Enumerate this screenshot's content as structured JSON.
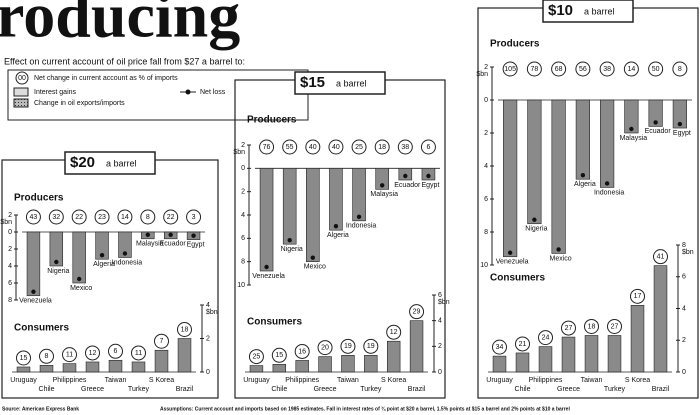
{
  "header": {
    "title": "roducing",
    "subtitle": "Effect on current account of oil price fall from $27 a barrel to:"
  },
  "legend": {
    "circle": "00",
    "circle_text": "Net change in current account as % of imports",
    "interest": "Interest gains",
    "oil": "Change in oil exports/imports",
    "loss": "Net loss"
  },
  "footer": {
    "source": "Source: American Express Bank",
    "note": "Assumptions: Current account and imports based on 1985 estimates. Fall in interest rates of ¾ point at $20 a barrel, 1.5% points at $15 a barrel and 2% points at $10 a barrel"
  },
  "chart_data": [
    {
      "type": "bar",
      "price": "$20",
      "price_unit": "a barrel",
      "title": "Producers",
      "ylabel": "$bn",
      "color": "#8a8a8a",
      "categories": [
        "Venezuela",
        "Nigeria",
        "Mexico",
        "Algeria",
        "Indonesia",
        "Malaysia",
        "Ecuador",
        "Egypt"
      ],
      "values": [
        -7.5,
        -4,
        -6,
        -3.2,
        -3,
        -0.8,
        -0.8,
        -0.9
      ],
      "pct_of_imports": [
        43,
        32,
        22,
        23,
        14,
        8,
        22,
        3
      ],
      "ylim": [
        -8,
        2
      ],
      "yticks": [
        2,
        0,
        {
          "value": -2,
          "label": "2"
        },
        {
          "value": -4,
          "label": "4"
        },
        {
          "value": -6,
          "label": "6"
        },
        {
          "value": -8,
          "label": "8"
        }
      ]
    },
    {
      "type": "bar",
      "title": "Consumers",
      "ylabel": "$bn",
      "color": "#8a8a8a",
      "categories": [
        "Uruguay",
        "Chile",
        "Philippines",
        "Greece",
        "Taiwan",
        "Turkey",
        "S Korea",
        "Brazil"
      ],
      "values": [
        0.3,
        0.4,
        0.5,
        0.6,
        0.7,
        0.6,
        1.3,
        2
      ],
      "pct_of_imports": [
        15,
        8,
        11,
        12,
        6,
        11,
        7,
        18
      ],
      "ylim": [
        0,
        4
      ],
      "yticks": [
        0,
        2,
        4
      ]
    },
    {
      "type": "bar",
      "price": "$15",
      "price_unit": "a barrel",
      "title": "Producers",
      "ylabel": "$bn",
      "color": "#8a8a8a",
      "categories": [
        "Venezuela",
        "Nigeria",
        "Mexico",
        "Algeria",
        "Indonesia",
        "Malaysia",
        "Ecuador",
        "Egypt"
      ],
      "values": [
        -8.8,
        -6.5,
        -8,
        -5.3,
        -4.5,
        -1.8,
        -1,
        -1
      ],
      "pct_of_imports": [
        76,
        55,
        40,
        40,
        25,
        18,
        38,
        6
      ],
      "ylim": [
        -10,
        2
      ],
      "yticks": [
        2,
        0,
        {
          "value": -2,
          "label": "2"
        },
        {
          "value": -4,
          "label": "4"
        },
        {
          "value": -6,
          "label": "6"
        },
        {
          "value": -8,
          "label": "8"
        },
        {
          "value": -10,
          "label": "10"
        }
      ]
    },
    {
      "type": "bar",
      "title": "Consumers",
      "ylabel": "$bn",
      "color": "#8a8a8a",
      "categories": [
        "Uruguay",
        "Chile",
        "Philippines",
        "Greece",
        "Taiwan",
        "Turkey",
        "S Korea",
        "Brazil"
      ],
      "values": [
        0.5,
        0.6,
        0.9,
        1.2,
        1.3,
        1.3,
        2.4,
        4
      ],
      "pct_of_imports": [
        25,
        15,
        16,
        20,
        19,
        19,
        12,
        29
      ],
      "ylim": [
        0,
        6
      ],
      "yticks": [
        0,
        2,
        4,
        6
      ]
    },
    {
      "type": "bar",
      "price": "$10",
      "price_unit": "a barrel",
      "title": "Producers",
      "ylabel": "$bn",
      "color": "#8a8a8a",
      "categories": [
        "Venezuela",
        "Nigeria",
        "Mexico",
        "Algeria",
        "Indonesia",
        "Malaysia",
        "Ecuador",
        "Egypt"
      ],
      "values": [
        -9.5,
        -7.5,
        -9.3,
        -4.8,
        -5.3,
        -2,
        -1.6,
        -1.7
      ],
      "pct_of_imports": [
        105,
        78,
        68,
        56,
        38,
        14,
        50,
        8
      ],
      "ylim": [
        -10,
        2
      ],
      "yticks": [
        2,
        0,
        {
          "value": -2,
          "label": "2"
        },
        {
          "value": -4,
          "label": "4"
        },
        {
          "value": -6,
          "label": "6"
        },
        {
          "value": -8,
          "label": "8"
        },
        {
          "value": -10,
          "label": "10"
        }
      ]
    },
    {
      "type": "bar",
      "title": "Consumers",
      "ylabel": "$bn",
      "color": "#8a8a8a",
      "categories": [
        "Uruguay",
        "Chile",
        "Philippines",
        "Greece",
        "Taiwan",
        "Turkey",
        "S Korea",
        "Brazil"
      ],
      "values": [
        1,
        1.2,
        1.6,
        2.2,
        2.3,
        2.3,
        4.2,
        6.7
      ],
      "pct_of_imports": [
        34,
        21,
        24,
        27,
        18,
        27,
        17,
        41
      ],
      "ylim": [
        0,
        8
      ],
      "yticks": [
        0,
        2,
        4,
        6,
        8
      ]
    }
  ]
}
